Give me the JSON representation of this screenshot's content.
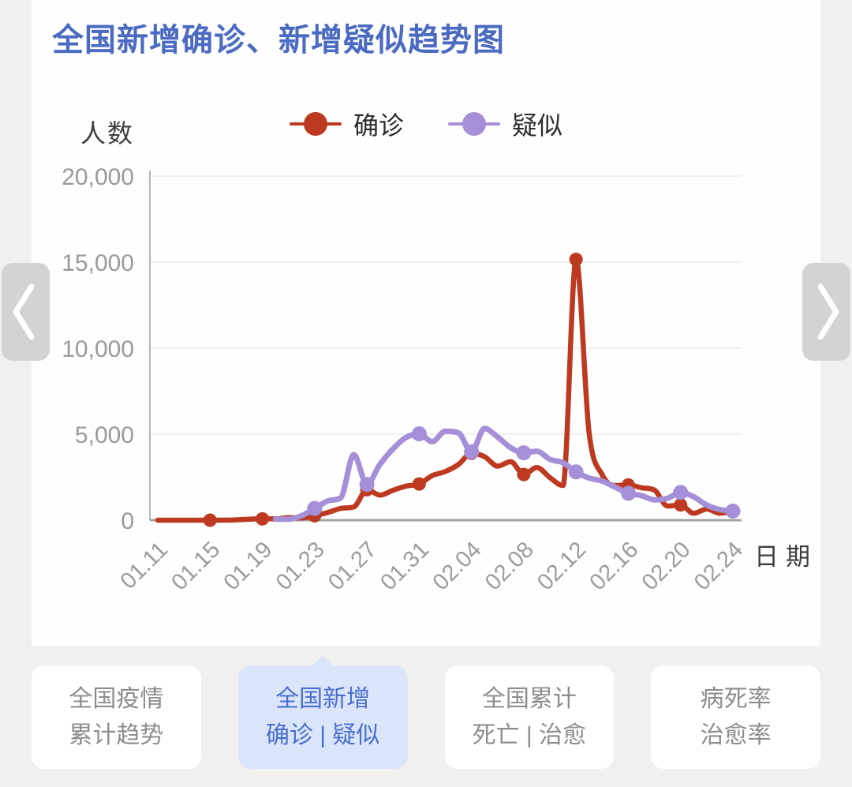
{
  "theme": {
    "page_bg": "#f1f0ee",
    "card_bg": "#fefefe",
    "title_blue": "#4b6ac2",
    "tab_active_bg": "#dbe5fa",
    "tab_active_text": "#4a6fd0",
    "tab_inactive_text": "#8d8d8d",
    "confirmed_red": "#bd3a20",
    "suspected_purple": "#a48fd8",
    "axis_gray": "#a3a3a3",
    "grid_gray": "#ebebeb",
    "tick_text_gray": "#9b9b9b"
  },
  "header": {
    "title": "全国新增确诊、新增疑似趋势图"
  },
  "legend": {
    "items": [
      {
        "label": "确诊",
        "color": "#bd3a20"
      },
      {
        "label": "疑似",
        "color": "#a48fd8"
      }
    ]
  },
  "chart_data": {
    "type": "line",
    "title": "全国新增确诊、新增疑似趋势图",
    "xlabel": "日期",
    "ylabel": "人数",
    "ylim": [
      0,
      20000
    ],
    "grid": true,
    "legend_position": "top",
    "yticks": [
      0,
      5000,
      10000,
      15000,
      20000
    ],
    "ytick_labels": [
      "0",
      "5,000",
      "10,000",
      "15,000",
      "20,000"
    ],
    "x_tick_interval": 4,
    "marker_interval": 4,
    "marker_start_index": 4,
    "x": [
      "01.11",
      "01.12",
      "01.13",
      "01.14",
      "01.15",
      "01.16",
      "01.17",
      "01.18",
      "01.19",
      "01.20",
      "01.21",
      "01.22",
      "01.23",
      "01.24",
      "01.25",
      "01.26",
      "01.27",
      "01.28",
      "01.29",
      "01.30",
      "01.31",
      "02.01",
      "02.02",
      "02.03",
      "02.04",
      "02.05",
      "02.06",
      "02.07",
      "02.08",
      "02.09",
      "02.10",
      "02.11",
      "02.12",
      "02.13",
      "02.14",
      "02.15",
      "02.16",
      "02.17",
      "02.18",
      "02.19",
      "02.20",
      "02.21",
      "02.22",
      "02.23",
      "02.24"
    ],
    "x_axis_tick_labels": [
      "01.11",
      "01.15",
      "01.19",
      "01.23",
      "01.27",
      "01.31",
      "02.04",
      "02.08",
      "02.12",
      "02.16",
      "02.20",
      "02.24"
    ],
    "series": [
      {
        "name": "确诊",
        "color": "#bd3a20",
        "values": [
          0,
          0,
          1,
          0,
          0,
          4,
          17,
          59,
          77,
          77,
          149,
          131,
          259,
          444,
          688,
          769,
          1771,
          1459,
          1737,
          1982,
          2102,
          2590,
          2829,
          3235,
          3887,
          3694,
          3143,
          3399,
          2656,
          3062,
          2478,
          2015,
          15152,
          5090,
          2641,
          2009,
          2048,
          1886,
          1749,
          820,
          889,
          397,
          648,
          409,
          508
        ]
      },
      {
        "name": "疑似",
        "color": "#a48fd8",
        "values": [
          null,
          null,
          null,
          null,
          null,
          null,
          null,
          null,
          null,
          54,
          53,
          257,
          680,
          1118,
          1309,
          3806,
          2077,
          3248,
          4148,
          4812,
          5019,
          4562,
          5173,
          5072,
          3971,
          5328,
          4833,
          4214,
          3916,
          4008,
          3536,
          3342,
          2807,
          2450,
          2277,
          1918,
          1563,
          1432,
          1185,
          1277,
          1614,
          1361,
          882,
          620,
          530
        ]
      }
    ]
  },
  "tabs": [
    {
      "line1": "全国疫情",
      "line2": "累计趋势",
      "active": false
    },
    {
      "line1": "全国新增",
      "line2": "确诊 | 疑似",
      "active": true
    },
    {
      "line1": "全国累计",
      "line2": "死亡 | 治愈",
      "active": false
    },
    {
      "line1": "病死率",
      "line2": "治愈率",
      "active": false
    }
  ]
}
